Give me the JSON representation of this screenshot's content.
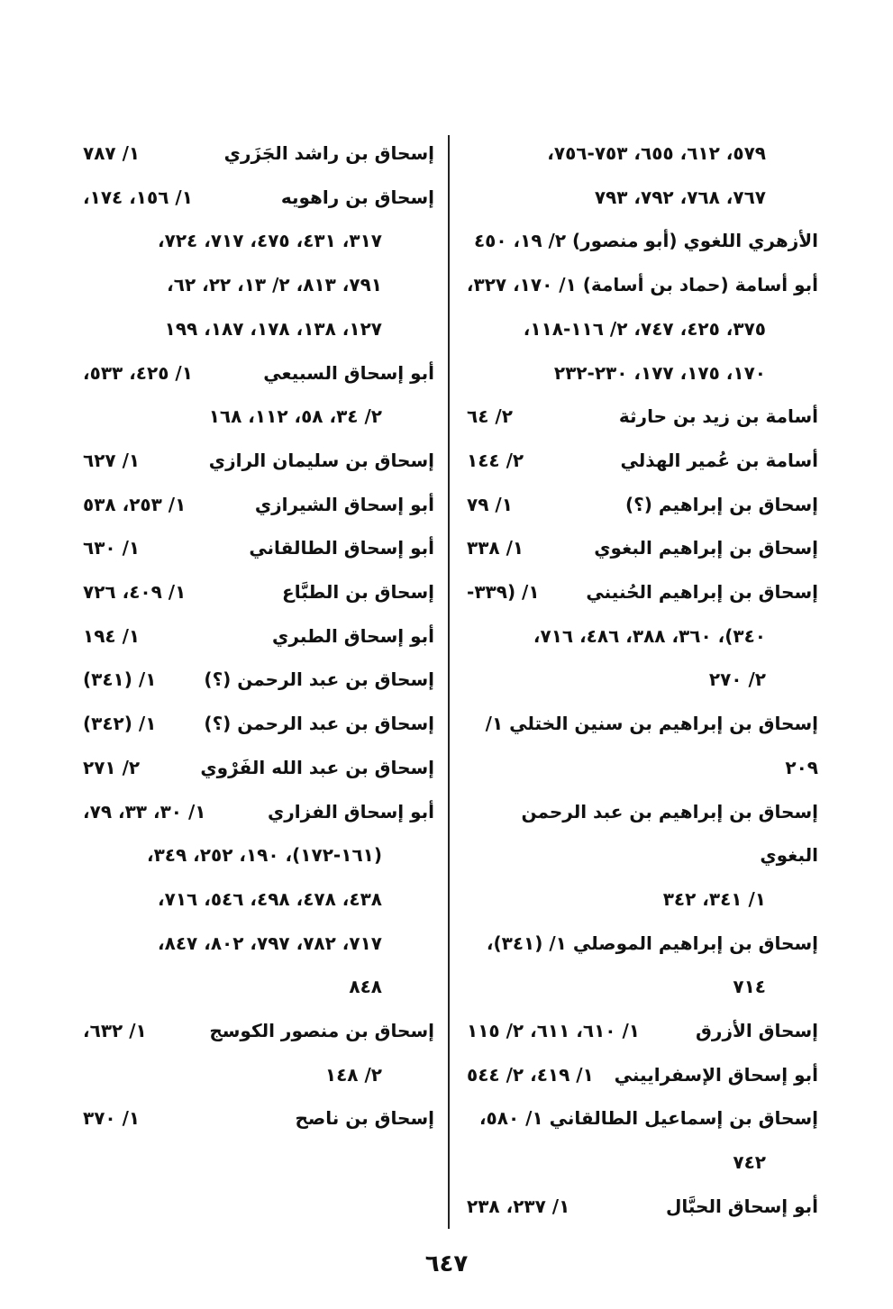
{
  "columns": {
    "right": [
      {
        "text": "٥٧٩، ٦١٢، ٦٥٥، ٧٥٣-٧٥٦،"
      },
      {
        "text": "٧٦٧، ٧٦٨، ٧٩٢، ٧٩٣"
      },
      {
        "full": "الأزهري اللغوي (أبو منصور) ٢/ ١٩، ٤٥٠"
      },
      {
        "full": "أبو أسامة (حماد بن أسامة) ١/ ١٧٠، ٣٢٧،"
      },
      {
        "text": "٣٧٥، ٤٢٥، ٧٤٧، ٢/ ١١٦-١١٨،"
      },
      {
        "text": "١٧٠، ١٧٥، ١٧٧، ٢٣٠-٢٣٢"
      },
      {
        "name": "أسامة بن زيد بن حارثة",
        "ref": "٢/ ٦٤"
      },
      {
        "name": "أسامة بن عُمير الهذلي",
        "ref": "٢/ ١٤٤"
      },
      {
        "name": "إسحاق بن إبراهيم (؟)",
        "ref": "١/ ٧٩"
      },
      {
        "name": "إسحاق بن إبراهيم البغوي",
        "ref": "١/ ٣٣٨"
      },
      {
        "name": "إسحاق بن إبراهيم الحُنيني",
        "ref": "١/ (٣٣٩-"
      },
      {
        "text": "٣٤٠)، ٣٦٠، ٣٨٨، ٤٨٦، ٧١٦،"
      },
      {
        "text": "٢/ ٢٧٠"
      },
      {
        "full": "إسحاق بن إبراهيم بن سنين الختلي ١/ ٢٠٩"
      },
      {
        "full": "إسحاق بن إبراهيم بن عبد الرحمن البغوي"
      },
      {
        "text": "١/ ٣٤١، ٣٤٢"
      },
      {
        "full": "إسحاق بن إبراهيم الموصلي ١/ (٣٤١)،"
      },
      {
        "text": "٧١٤"
      },
      {
        "name": "إسحاق الأزرق",
        "ref": "١/ ٦١٠، ٦١١، ٢/ ١١٥"
      },
      {
        "name": "أبو إسحاق الإسفراييني",
        "ref": "١/ ٤١٩، ٢/ ٥٤٤"
      },
      {
        "full": "إسحاق بن إسماعيل الطالقاني ١/ ٥٨٠،"
      },
      {
        "text": "٧٤٢"
      },
      {
        "name": "أبو إسحاق الحبَّال",
        "ref": "١/ ٢٣٧، ٢٣٨"
      }
    ],
    "left": [
      {
        "name": "إسحاق بن راشد الجَزَري",
        "ref": "١/ ٧٨٧"
      },
      {
        "name": "إسحاق بن راهويه",
        "ref": "١/ ١٥٦، ١٧٤،"
      },
      {
        "text": "٣١٧، ٤٣١، ٤٧٥، ٧١٧، ٧٢٤،"
      },
      {
        "text": "٧٩١، ٨١٣، ٢/ ١٣، ٢٢، ٦٢،"
      },
      {
        "text": "١٢٧، ١٣٨، ١٧٨، ١٨٧، ١٩٩"
      },
      {
        "name": "أبو إسحاق السبيعي",
        "ref": "١/ ٤٢٥، ٥٣٣،"
      },
      {
        "text": "٢/ ٣٤، ٥٨، ١١٢، ١٦٨"
      },
      {
        "name": "إسحاق بن سليمان الرازي",
        "ref": "١/ ٦٢٧"
      },
      {
        "name": "أبو إسحاق الشيرازي",
        "ref": "١/ ٢٥٣، ٥٣٨"
      },
      {
        "name": "أبو إسحاق الطالقاني",
        "ref": "١/ ٦٣٠"
      },
      {
        "name": "إسحاق بن الطبَّاع",
        "ref": "١/ ٤٠٩، ٧٢٦"
      },
      {
        "name": "أبو إسحاق الطبري",
        "ref": "١/ ١٩٤"
      },
      {
        "name": "إسحاق بن عبد الرحمن (؟)",
        "ref": "١/ (٣٤١)"
      },
      {
        "name": "إسحاق بن عبد الرحمن (؟)",
        "ref": "١/ (٣٤٢)"
      },
      {
        "name": "إسحاق بن عبد الله الفَرْوي",
        "ref": "٢/ ٢٧١"
      },
      {
        "name": "أبو إسحاق الفزاري",
        "ref": "١/ ٣٠، ٣٣، ٧٩،"
      },
      {
        "text": "(١٦١-١٧٢)، ١٩٠، ٢٥٢، ٣٤٩،"
      },
      {
        "text": "٤٣٨، ٤٧٨، ٤٩٨، ٥٤٦، ٧١٦،"
      },
      {
        "text": "٧١٧، ٧٨٢، ٧٩٧، ٨٠٢، ٨٤٧،"
      },
      {
        "text": "٨٤٨"
      },
      {
        "name": "إسحاق بن منصور الكوسج",
        "ref": "١/ ٦٣٢،"
      },
      {
        "text": "٢/ ١٤٨"
      },
      {
        "name": "إسحاق بن ناصح",
        "ref": "١/ ٣٧٠"
      }
    ]
  },
  "page_number": "٦٤٧"
}
